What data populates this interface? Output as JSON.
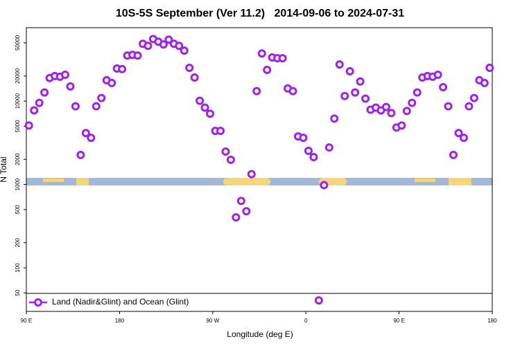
{
  "chart_data": {
    "type": "scatter",
    "title": "10S-5S September (Ver 11.2)   2014-09-06 to 2024-07-31",
    "x_label": "Longitude (deg E)",
    "y_label": "N Total",
    "xlim": [
      90,
      540
    ],
    "xticks": [
      {
        "value": 90,
        "label": "90 E"
      },
      {
        "value": 180,
        "label": "180"
      },
      {
        "value": 270,
        "label": "90 W"
      },
      {
        "value": 360,
        "label": "0"
      },
      {
        "value": 450,
        "label": "90 E"
      },
      {
        "value": 540,
        "label": "180"
      }
    ],
    "ylim": [
      30,
      76000
    ],
    "yscale": "log",
    "yticks": [
      50,
      100,
      200,
      500,
      1000,
      2000,
      5000,
      10000,
      20000,
      50000
    ],
    "legend": "bottom",
    "x": [
      92.5,
      97.5,
      102.5,
      107.5,
      112.5,
      117.5,
      122.5,
      127.5,
      132.5,
      137.5,
      142.5,
      147.5,
      152.5,
      157.5,
      162.5,
      167.5,
      172.5,
      177.5,
      182.5,
      187.5,
      192.5,
      197.5,
      202.5,
      207.5,
      212.5,
      217.5,
      222.5,
      227.5,
      232.5,
      237.5,
      242.5,
      247.5,
      252.5,
      257.5,
      262.5,
      267.5,
      272.5,
      277.5,
      282.5,
      287.5,
      292.5,
      297.5,
      302.5,
      307.5,
      312.5,
      317.5,
      322.5,
      327.5,
      332.5,
      337.5,
      342.5,
      347.5,
      352.5,
      357.5,
      362.5,
      367.5,
      372.5,
      377.5,
      382.5,
      387.5,
      392.5,
      397.5,
      402.5,
      407.5,
      412.5,
      417.5,
      422.5,
      427.5,
      432.5,
      437.5,
      442.5,
      447.5,
      452.5,
      457.5,
      462.5,
      467.5,
      472.5,
      477.5,
      482.5,
      487.5,
      492.5,
      497.5,
      502.5,
      507.5,
      512.5,
      517.5,
      522.5,
      527.5,
      532.5,
      537.5
    ],
    "series": [
      {
        "name": "Land (Nadir&Glint) and Ocean (Glint)",
        "color": "#a020f0",
        "values": [
          5100,
          7740,
          9530,
          12700,
          18900,
          20000,
          19600,
          20700,
          15000,
          8670,
          2260,
          4140,
          3630,
          8670,
          10900,
          17800,
          16500,
          24600,
          24200,
          35200,
          35900,
          35200,
          48700,
          46000,
          55600,
          51600,
          47800,
          54600,
          48700,
          46000,
          40300,
          25100,
          19200,
          10100,
          8350,
          7050,
          4390,
          4390,
          2480,
          1980,
          403,
          634,
          477,
          1330,
          13200,
          37300,
          23700,
          33400,
          32700,
          32700,
          14200,
          13200,
          3770,
          3630,
          2530,
          2130,
          40.6,
          981,
          2780,
          6170,
          27500,
          11500,
          22800,
          12700,
          17200,
          10700,
          7890,
          8350,
          7740,
          8490,
          7180,
          4820,
          5100,
          7610,
          9530,
          12700,
          19200,
          20000,
          19600,
          20700,
          14700,
          8670,
          2260,
          4140,
          3630,
          8670,
          10900,
          17800,
          16500,
          25100
        ]
      }
    ]
  }
}
